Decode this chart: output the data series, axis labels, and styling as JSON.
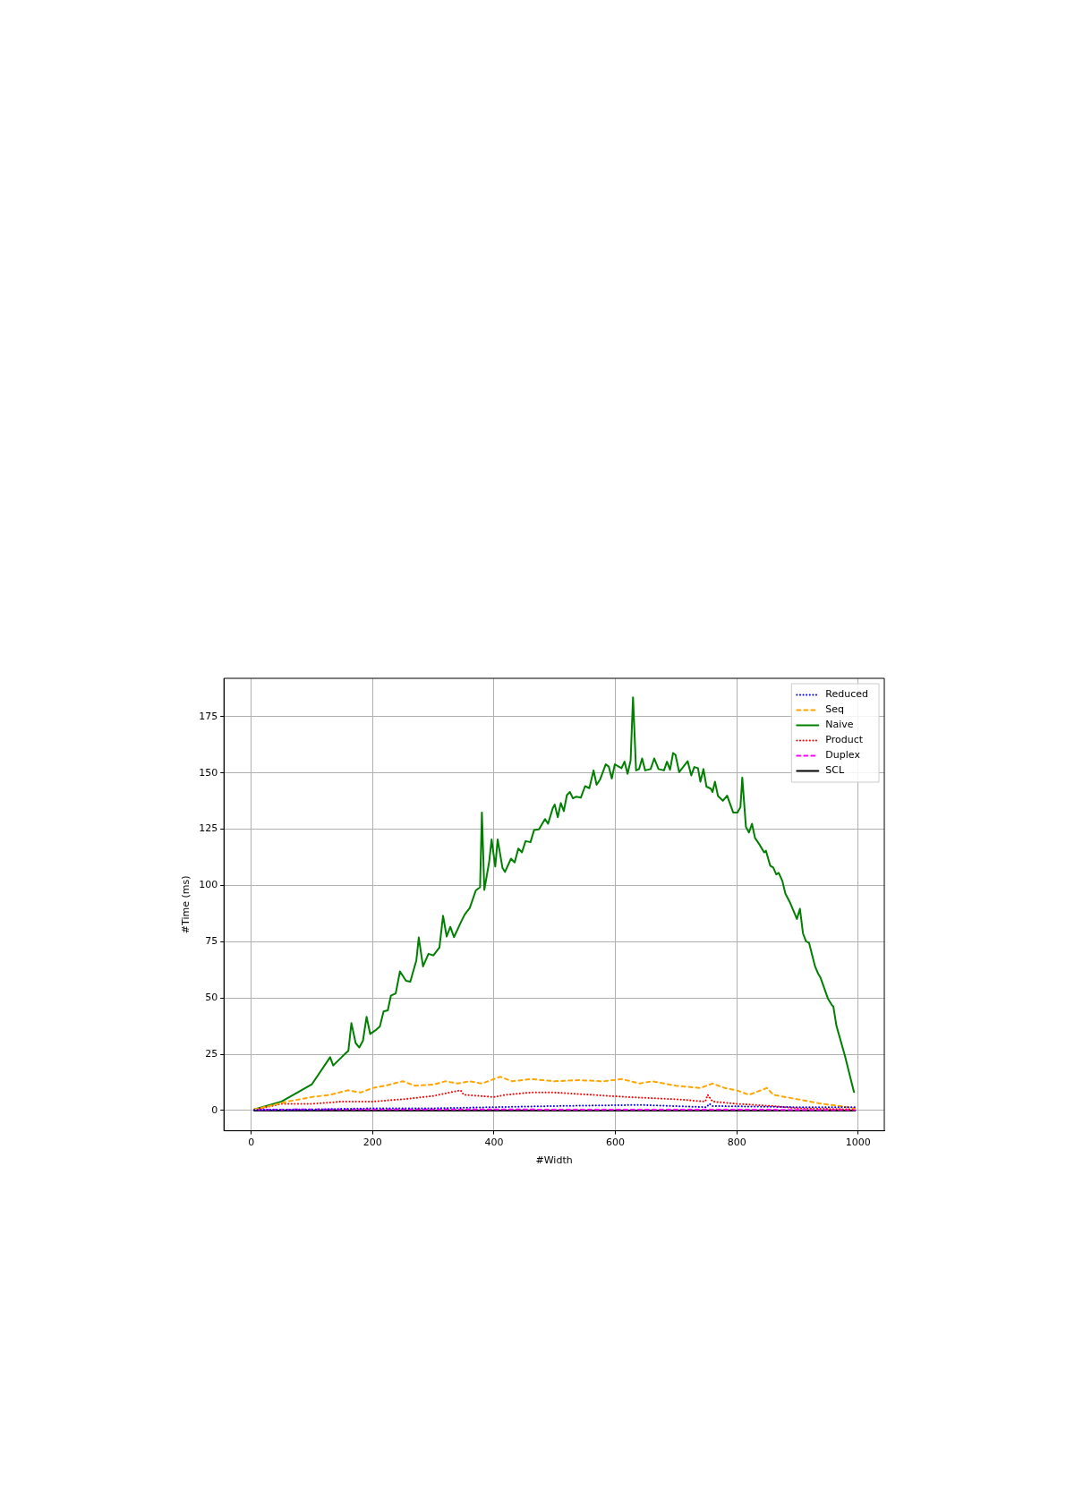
{
  "chart_data": {
    "type": "line",
    "xlabel": "#Width",
    "ylabel": "#Time (ms)",
    "xlim": [
      -45,
      1043
    ],
    "ylim": [
      -9,
      192
    ],
    "xticks": [
      0,
      200,
      400,
      600,
      800,
      1000
    ],
    "yticks": [
      0,
      25,
      50,
      75,
      100,
      125,
      150,
      175
    ],
    "grid": true,
    "legend": "top right",
    "marker": "none",
    "series": [
      {
        "name": "Reduced",
        "color": "#0000ff",
        "line_style": "dotted",
        "x": [
          5,
          100,
          200,
          300,
          400,
          500,
          640,
          750,
          755,
          760,
          900,
          995
        ],
        "values": [
          0.3,
          0.5,
          1,
          1,
          1.5,
          2,
          2.5,
          1.5,
          3,
          2,
          1.5,
          1.5
        ]
      },
      {
        "name": "Seq",
        "color": "#ffa500",
        "line_style": "dashed",
        "x": [
          5,
          30,
          60,
          80,
          100,
          130,
          160,
          180,
          200,
          220,
          250,
          270,
          300,
          320,
          340,
          360,
          380,
          410,
          430,
          460,
          500,
          540,
          580,
          610,
          640,
          660,
          700,
          740,
          760,
          780,
          800,
          820,
          850,
          860,
          900,
          940,
          970,
          995
        ],
        "values": [
          0.5,
          2,
          4,
          5,
          6,
          7,
          9,
          8,
          10,
          11,
          13,
          11,
          11.5,
          13,
          12,
          13,
          12,
          15,
          13,
          14,
          13,
          13.5,
          13,
          14,
          12,
          13,
          11,
          10,
          12,
          10,
          9,
          7,
          10,
          7,
          5,
          3,
          2,
          1
        ]
      },
      {
        "name": "Naive",
        "color": "#008000",
        "line_style": "solid",
        "x": [
          5,
          50,
          100,
          130,
          135,
          150,
          160,
          165,
          172,
          178,
          184,
          190,
          196,
          205,
          212,
          218,
          225,
          230,
          238,
          245,
          255,
          262,
          272,
          276,
          283,
          292,
          300,
          310,
          316,
          322,
          328,
          334,
          346,
          352,
          360,
          370,
          377,
          380,
          384,
          392,
          396,
          402,
          406,
          414,
          418,
          428,
          434,
          440,
          446,
          452,
          460,
          466,
          474,
          484,
          489,
          497,
          500,
          505,
          510,
          515,
          520,
          525,
          530,
          535,
          543,
          550,
          557,
          564,
          569,
          575,
          584,
          589,
          594,
          599,
          610,
          615,
          620,
          625,
          629,
          634,
          639,
          644,
          649,
          658,
          664,
          671,
          680,
          685,
          690,
          695,
          699,
          705,
          719,
          725,
          730,
          736,
          740,
          745,
          750,
          757,
          760,
          764,
          769,
          777,
          784,
          794,
          801,
          806,
          809,
          815,
          820,
          825,
          830,
          837,
          845,
          848,
          855,
          860,
          865,
          869,
          875,
          880,
          888,
          899,
          904,
          909,
          914,
          919,
          929,
          934,
          938,
          950,
          957,
          959,
          964,
          978,
          993
        ],
        "values": [
          0.5,
          4,
          11.7,
          23.7,
          20,
          24,
          26.5,
          38.8,
          30,
          28,
          31,
          41.6,
          34,
          35.7,
          37.4,
          44,
          44.5,
          51,
          52,
          61.8,
          57.6,
          57.2,
          66.7,
          76.9,
          64,
          69.6,
          68.9,
          72.4,
          86.5,
          77.3,
          81.6,
          77,
          84,
          87.2,
          90,
          97.8,
          99.2,
          132.4,
          98,
          110.5,
          120.4,
          108.4,
          120.4,
          107.7,
          106,
          111.9,
          110.2,
          116.4,
          114.7,
          119.7,
          119.2,
          124.6,
          124.9,
          129.5,
          127.4,
          134.5,
          135.9,
          130.3,
          136.6,
          133,
          140.1,
          141.5,
          138.7,
          139.4,
          139,
          144.1,
          143.2,
          151.1,
          144.7,
          147.2,
          153.8,
          152.8,
          147.5,
          153.8,
          152.1,
          155,
          149.6,
          155.4,
          183.6,
          151.1,
          151.7,
          156.4,
          151.1,
          151.7,
          156.4,
          151.7,
          151.1,
          155,
          151.4,
          158.8,
          158,
          150.3,
          155.2,
          148.9,
          152.6,
          152.1,
          146.1,
          151.7,
          143.9,
          143,
          141.5,
          146.1,
          139.7,
          137.6,
          139.9,
          132.4,
          132.4,
          134.8,
          147.9,
          126,
          123.5,
          127.4,
          121.1,
          118.3,
          114.7,
          115.4,
          108.8,
          108,
          104.9,
          105.6,
          102,
          96.4,
          92.2,
          85.1,
          89.6,
          78.7,
          75.2,
          74.5,
          63.9,
          60.8,
          59,
          49.8,
          46.7,
          46.3,
          37.8,
          24.4,
          8.2
        ]
      },
      {
        "name": "Product",
        "color": "#ff0000",
        "line_style": "dotted",
        "x": [
          9,
          50,
          100,
          150,
          200,
          250,
          300,
          345,
          350,
          400,
          420,
          460,
          500,
          560,
          620,
          700,
          748,
          752,
          760,
          800,
          860,
          900,
          995
        ],
        "values": [
          0.5,
          3,
          3,
          4,
          4,
          5,
          6.5,
          9,
          7,
          6,
          7,
          8,
          8,
          7,
          6,
          5,
          4,
          7,
          4,
          3,
          2,
          1,
          0.5
        ]
      },
      {
        "name": "Duplex",
        "color": "#ff00ff",
        "line_style": "dashed",
        "x": [
          12,
          100,
          200,
          995
        ],
        "values": [
          0.3,
          0.5,
          0.5,
          0.3
        ]
      },
      {
        "name": "SCL",
        "color": "#000000",
        "line_style": "solid",
        "x": [
          5,
          995
        ],
        "values": [
          0,
          0
        ]
      }
    ]
  }
}
